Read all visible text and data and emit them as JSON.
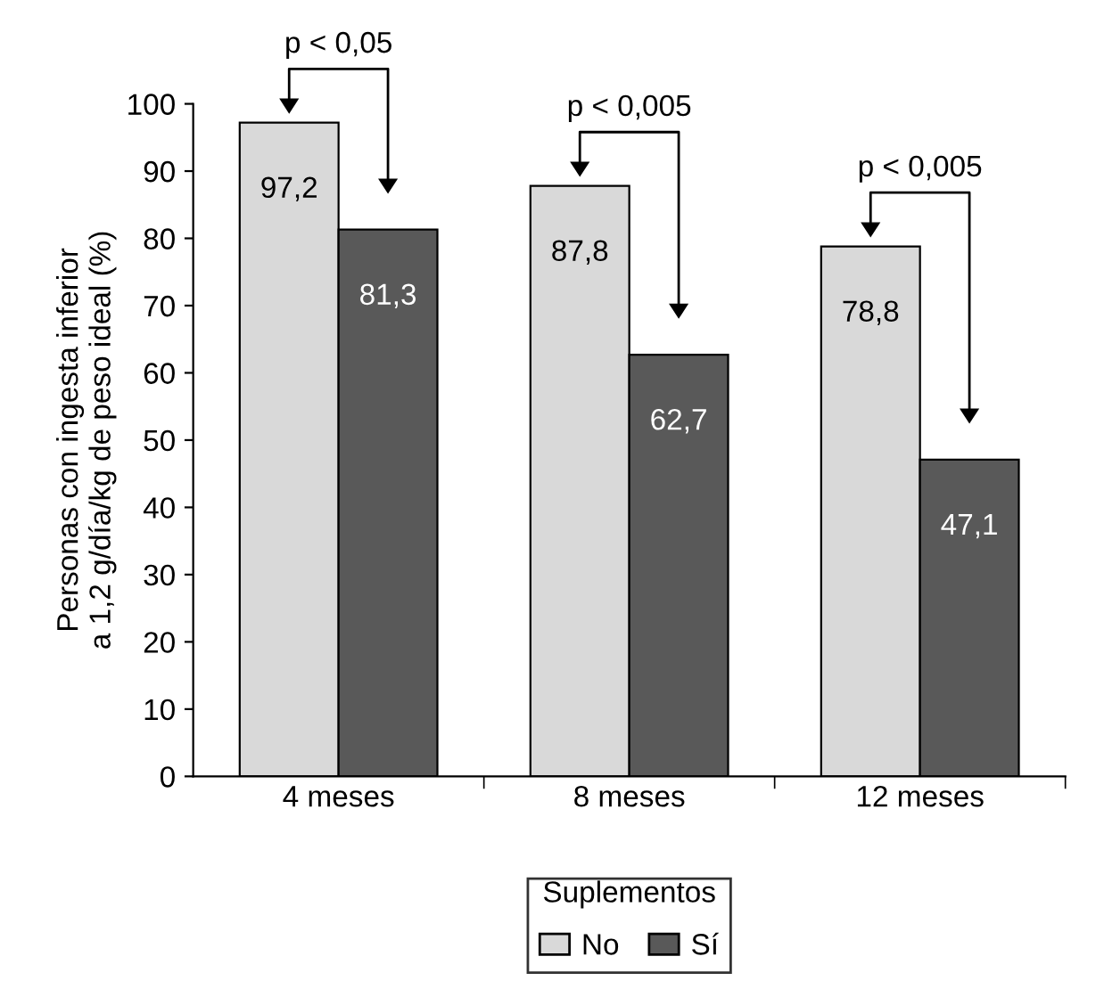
{
  "chart_data": {
    "type": "bar",
    "ylabel": "Personas con ingesta inferior\na 1,2 g/día/kg de peso ideal (%)",
    "legend_title": "Suplementos",
    "categories": [
      "4 meses",
      "8 meses",
      "12 meses"
    ],
    "series": [
      {
        "name": "No",
        "color": "#d9d9d9",
        "values": [
          97.2,
          87.8,
          78.8
        ],
        "value_labels": [
          "97,2",
          "87,8",
          "78,8"
        ]
      },
      {
        "name": "Sí",
        "color": "#595959",
        "values": [
          81.3,
          62.7,
          47.1
        ],
        "value_labels": [
          "81,3",
          "62,7",
          "47,1"
        ]
      }
    ],
    "ylim": [
      0,
      100
    ],
    "yticks": [
      0,
      10,
      20,
      30,
      40,
      50,
      60,
      70,
      80,
      90,
      100
    ],
    "annotations": [
      "p < 0,05",
      "p < 0,005",
      "p < 0,005"
    ],
    "grid": false,
    "legend": "bottom"
  }
}
